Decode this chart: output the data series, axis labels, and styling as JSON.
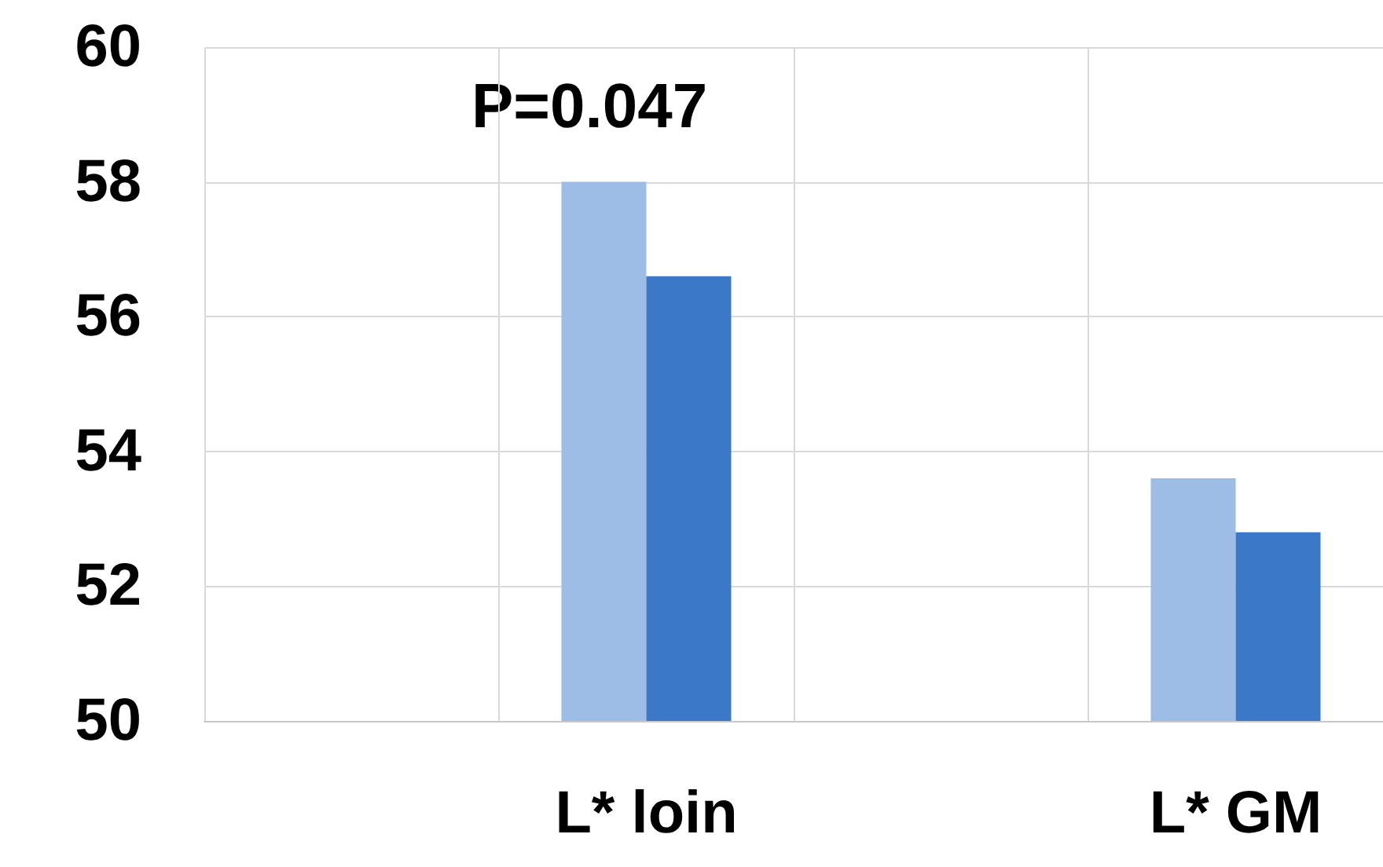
{
  "chart_data": {
    "type": "bar",
    "categories": [
      null,
      "L* loin",
      null,
      "L* GM"
    ],
    "series": [
      {
        "color": "#9dbde6",
        "values": [
          null,
          58.0,
          null,
          53.6
        ]
      },
      {
        "color": "#3b78c8",
        "values": [
          null,
          56.6,
          null,
          52.8
        ]
      }
    ],
    "ylim": [
      50,
      60
    ],
    "yticks": [
      50,
      52,
      54,
      56,
      58,
      60
    ],
    "grid": true,
    "annotations": [
      "P=0.047"
    ]
  }
}
